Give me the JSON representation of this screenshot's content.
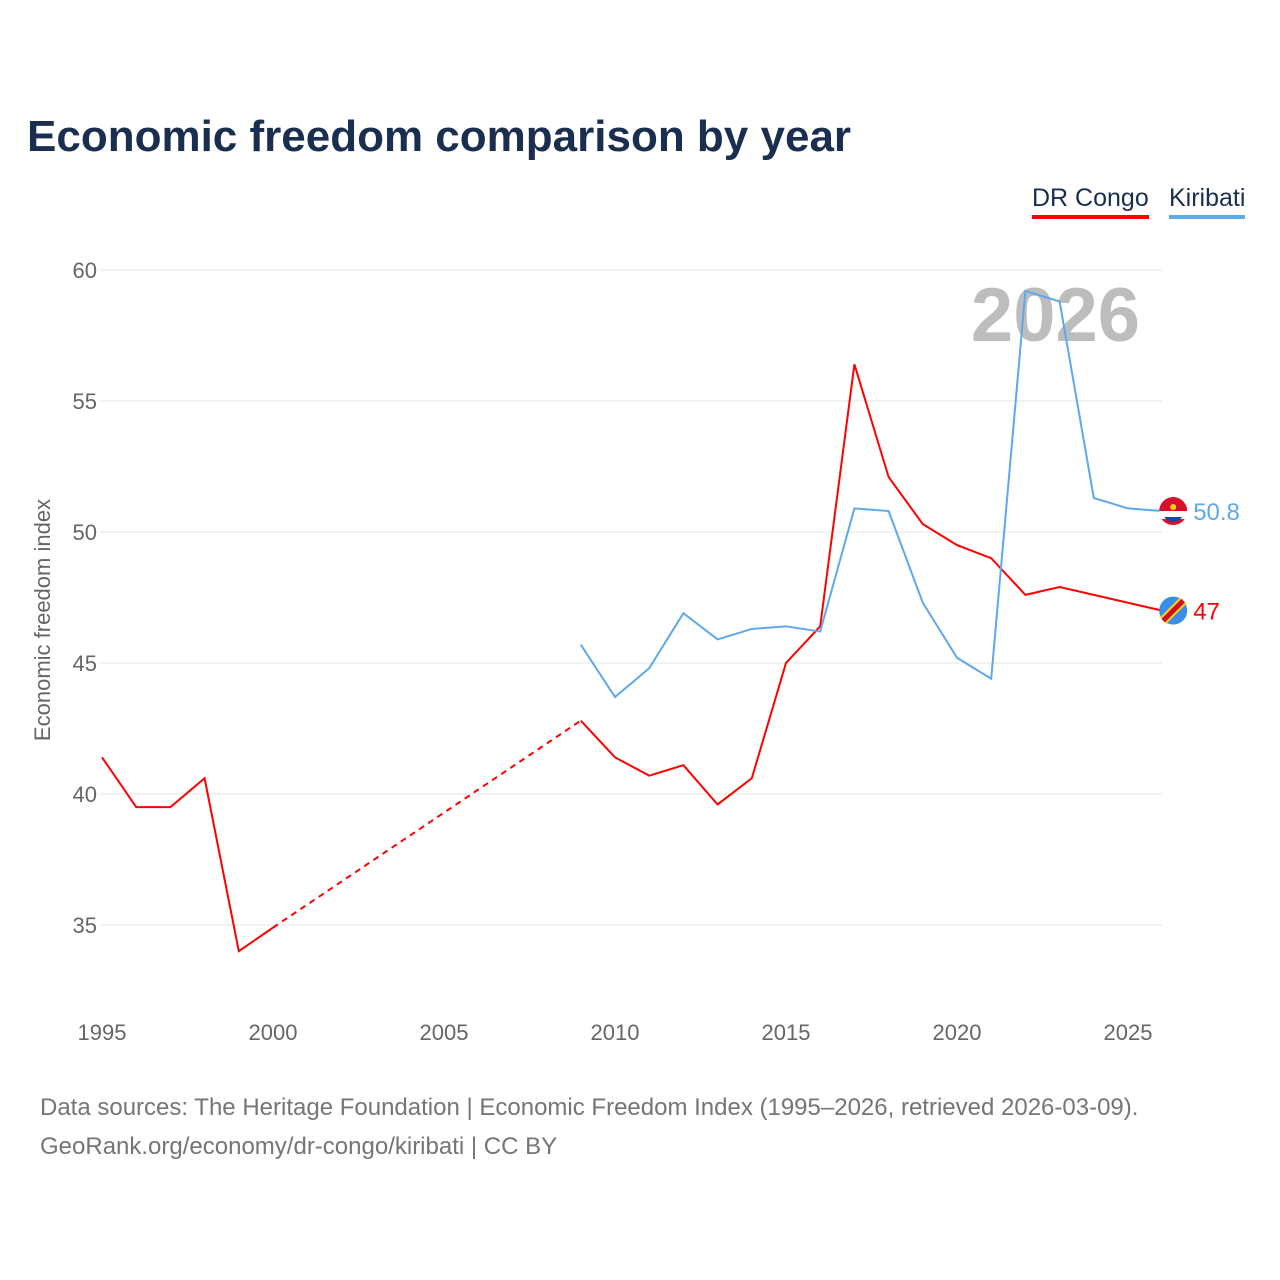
{
  "chart_data": {
    "type": "line",
    "title": "Economic freedom comparison by year",
    "xlabel": "",
    "ylabel": "Economic freedom index",
    "xlim": [
      1995,
      2026
    ],
    "ylim": [
      33,
      60
    ],
    "x_ticks": [
      1995,
      2000,
      2005,
      2010,
      2015,
      2020,
      2025
    ],
    "y_ticks": [
      35,
      40,
      45,
      50,
      55,
      60
    ],
    "grid": true,
    "legend_position": "top-right",
    "watermark_year": "2026",
    "series": [
      {
        "name": "DR Congo",
        "color": "#ff0000",
        "end_label": "47",
        "gap": [
          2000,
          2009
        ],
        "x": [
          1995,
          1996,
          1997,
          1998,
          1999,
          2000,
          2009,
          2010,
          2011,
          2012,
          2013,
          2014,
          2015,
          2016,
          2017,
          2018,
          2019,
          2020,
          2021,
          2022,
          2023,
          2024,
          2025,
          2026
        ],
        "values": [
          41.4,
          39.5,
          39.5,
          40.6,
          34.0,
          34.9,
          42.8,
          41.4,
          40.7,
          41.1,
          39.6,
          40.6,
          45.0,
          46.4,
          56.4,
          52.1,
          50.3,
          49.5,
          49.0,
          47.6,
          47.9,
          47.6,
          47.3,
          47.0
        ]
      },
      {
        "name": "Kiribati",
        "color": "#5ea8ec",
        "end_label": "50.8",
        "x": [
          2009,
          2010,
          2011,
          2012,
          2013,
          2014,
          2015,
          2016,
          2017,
          2018,
          2019,
          2020,
          2021,
          2022,
          2023,
          2024,
          2025,
          2026
        ],
        "values": [
          45.7,
          43.7,
          44.8,
          46.9,
          45.9,
          46.3,
          46.4,
          46.2,
          50.9,
          50.8,
          47.3,
          45.2,
          44.4,
          59.2,
          58.8,
          51.3,
          50.9,
          50.8
        ]
      }
    ]
  },
  "source_line1": "Data sources: The Heritage Foundation | Economic Freedom Index (1995–2026, retrieved 2026-03-09).",
  "source_line2": "GeoRank.org/economy/dr-congo/kiribati | CC BY"
}
